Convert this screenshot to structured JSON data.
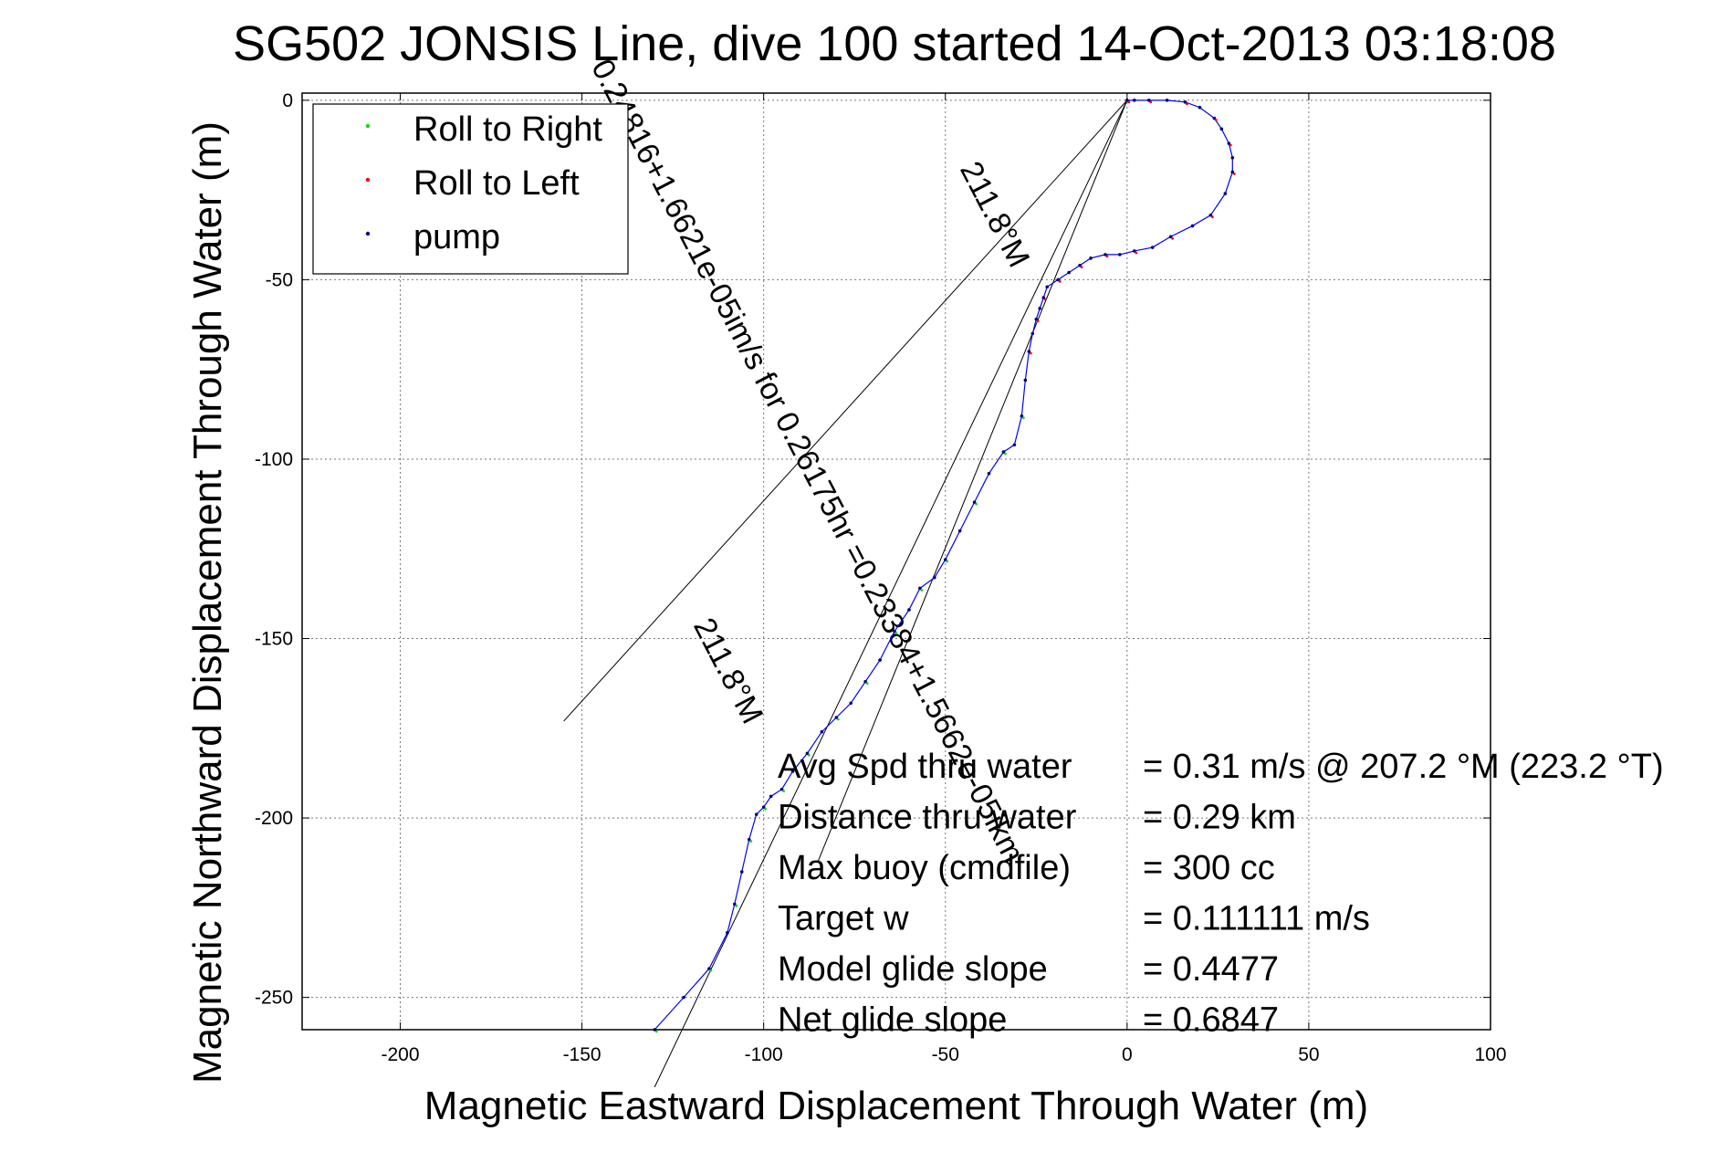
{
  "chart_data": {
    "type": "scatter",
    "title": "SG502 JONSIS Line, dive 100 started 14-Oct-2013 03:18:08",
    "xlabel": "Magnetic Eastward Displacement Through Water (m)",
    "ylabel": "Magnetic Northward Displacement Through Water (m)",
    "xlim": [
      -227,
      100
    ],
    "ylim": [
      -259,
      2
    ],
    "x_ticks": [
      "-200",
      "-150",
      "-100",
      "-50",
      "0",
      "50",
      "100"
    ],
    "y_ticks": [
      "0",
      "-50",
      "-100",
      "-150",
      "-200",
      "-250"
    ],
    "grid": true,
    "legend_position": "top-left",
    "legend": [
      {
        "label": "Roll to Right",
        "color": "#00e000"
      },
      {
        "label": "Roll to Left",
        "color": "#ff0000"
      },
      {
        "label": "pump",
        "color": "#000080"
      }
    ],
    "track_color": "#0000ff",
    "track_x": [
      -130,
      -122,
      -115,
      -110,
      -108,
      -106,
      -104,
      -102,
      -100,
      -98,
      -95,
      -92,
      -88,
      -84,
      -80,
      -76,
      -72,
      -68,
      -64,
      -60,
      -57,
      -53,
      -50,
      -46,
      -42,
      -38,
      -34,
      -31,
      -29,
      -28,
      -27,
      -26,
      -25,
      -24,
      -23,
      -22,
      -19,
      -16,
      -13,
      -10,
      -6,
      -2,
      2,
      7,
      12,
      18,
      23,
      27,
      29,
      29,
      28,
      26,
      24,
      20,
      16,
      11,
      6,
      2,
      0
    ],
    "track_y": [
      -259,
      -250,
      -242,
      -232,
      -224,
      -215,
      -206,
      -199,
      -197,
      -194,
      -192,
      -187,
      -182,
      -176,
      -172,
      -168,
      -162,
      -156,
      -148,
      -142,
      -136,
      -133,
      -128,
      -120,
      -112,
      -104,
      -98,
      -96,
      -88,
      -78,
      -70,
      -65,
      -61,
      -58,
      -55,
      -52,
      -50,
      -48,
      -46,
      -44,
      -43,
      -43,
      -42,
      -41,
      -38,
      -35,
      -32,
      -26,
      -20,
      -16,
      -12,
      -8,
      -5,
      -2,
      -0.5,
      0,
      0,
      0,
      0
    ],
    "point_color": "#000080",
    "heading_lines": [
      {
        "label": "0.24816+1.6621e-05im/s for 0.26175hr =0.23384+1.5662e-05ikm",
        "x1": 0,
        "y1": 0,
        "x2": -130,
        "y2": -275
      },
      {
        "label": "211.8°M",
        "x1": 0,
        "y1": 0,
        "x2": -155,
        "y2": -173
      },
      {
        "label": "211.8°M",
        "x1": 0,
        "y1": 0,
        "x2": -85,
        "y2": -212
      }
    ],
    "stats": [
      {
        "label": "Avg Spd thru water",
        "value": "=  0.31 m/s @ 207.2 °M (223.2 °T)"
      },
      {
        "label": "Distance thru water",
        "value": "=  0.29 km"
      },
      {
        "label": "Max buoy (cmdfile)",
        "value": "= 300 cc"
      },
      {
        "label": "Target w",
        "value": "= 0.111111 m/s"
      },
      {
        "label": "Model glide slope",
        "value": "= 0.4477"
      },
      {
        "label": "Net glide slope",
        "value": "= 0.6847"
      }
    ]
  }
}
